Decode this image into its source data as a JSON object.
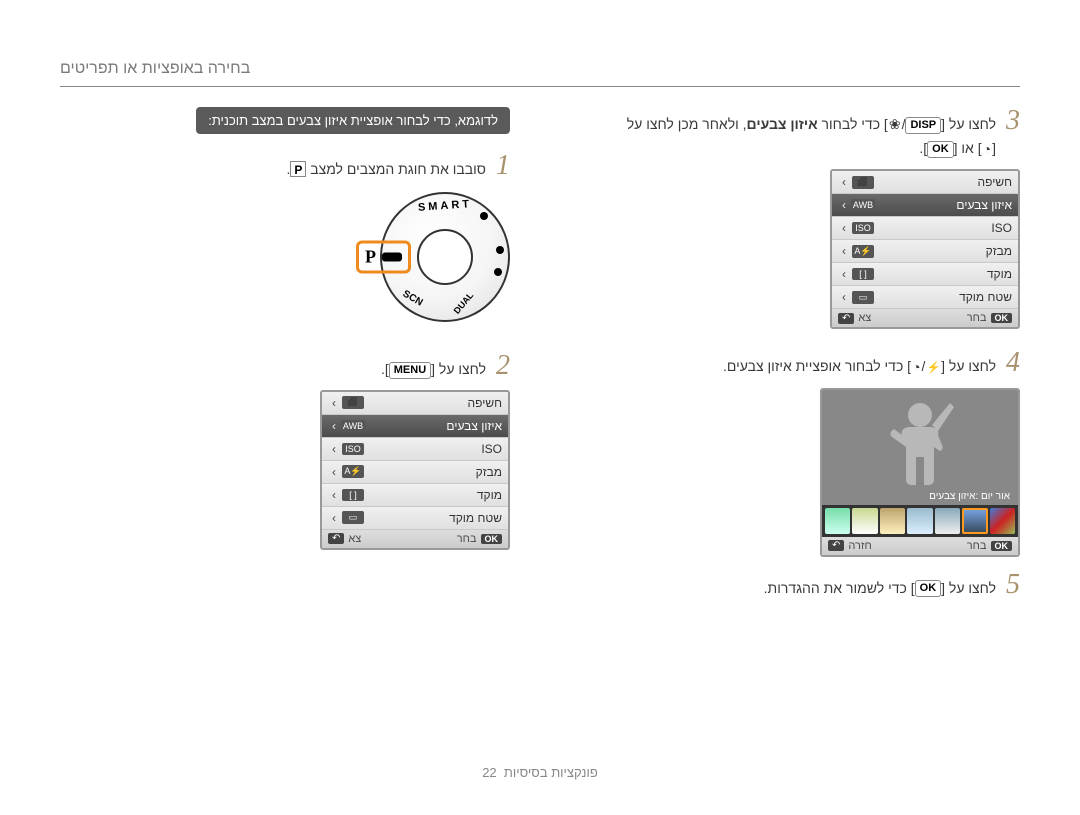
{
  "header": {
    "title": "בחירה באופציות או תפריטים"
  },
  "intro_box": "לדוגמא, כדי לבחור אופציית איזון צבעים במצב תוכנית:",
  "right": {
    "step1": {
      "num": "1",
      "text_prefix": "סובבו את חוגת המצבים למצב ",
      "mode": "P",
      "text_suffix": "."
    },
    "dial": {
      "indicator_letter": "P",
      "labels": {
        "top": "SMART",
        "bottom_left": "SCN",
        "bottom_right": "DUAL"
      }
    },
    "step2": {
      "num": "2",
      "text_prefix": "לחצו על [",
      "btn": "MENU",
      "text_suffix": "]."
    },
    "menu": {
      "items": [
        {
          "label": "חשיפה",
          "icon_text": "⬛",
          "selected": false
        },
        {
          "label": "איזון צבעים",
          "icon_text": "AWB",
          "selected": true
        },
        {
          "label": "ISO",
          "icon_text": "ISO",
          "selected": false
        },
        {
          "label": "מבזק",
          "icon_text": "⚡A",
          "selected": false
        },
        {
          "label": "מוקד",
          "icon_text": "[ ]",
          "selected": false
        },
        {
          "label": "שטח מוקד",
          "icon_text": "▭",
          "selected": false
        }
      ],
      "footer": {
        "select": "בחר",
        "exit": "צא"
      }
    }
  },
  "left": {
    "step3": {
      "num": "3",
      "line1_a": "לחצו על [",
      "btn_disp": "DISP",
      "line1_b": "/",
      "flower_html": "flower",
      "line1_c": "] כדי לבחור ",
      "bold": "איזון צבעים",
      "line1_d": ", ולאחר מכן לחצו על",
      "line2_a": "[",
      "timer_html": "timer",
      "line2_b": "] או [",
      "btn_ok": "OK",
      "line2_c": "]."
    },
    "menu": {
      "items": [
        {
          "label": "חשיפה",
          "icon_text": "⬛",
          "selected": false
        },
        {
          "label": "איזון צבעים",
          "icon_text": "AWB",
          "selected": true
        },
        {
          "label": "ISO",
          "icon_text": "ISO",
          "selected": false
        },
        {
          "label": "מבזק",
          "icon_text": "⚡A",
          "selected": false
        },
        {
          "label": "מוקד",
          "icon_text": "[ ]",
          "selected": false
        },
        {
          "label": "שטח מוקד",
          "icon_text": "▭",
          "selected": false
        }
      ],
      "footer": {
        "select": "בחר",
        "exit": "צא"
      }
    },
    "step4": {
      "num": "4",
      "text_a": "לחצו על [",
      "text_b": "/",
      "text_c": "] כדי לבחור אופציית איזון צבעים."
    },
    "wb": {
      "caption": "אור יום :איזון צבעים",
      "thumbs_count": 7,
      "thumb_gradients": [
        "linear-gradient(135deg,#3d7dd8,#c22,#9b5)",
        "linear-gradient(#7aa8e8,#345)",
        "linear-gradient(#8ab,#eee)",
        "linear-gradient(#9bc,#def)",
        "linear-gradient(#bca46b,#fff0c0)",
        "linear-gradient(#c8d890,#fff)",
        "linear-gradient(#7da,#cfe)"
      ],
      "footer": {
        "select": "בחר",
        "back": "חזרה"
      }
    },
    "step5": {
      "num": "5",
      "text_a": "לחצו על [",
      "btn": "OK",
      "text_b": "] כדי לשמור את ההגדרות."
    }
  },
  "footer": {
    "text": "פונקציות בסיסיות",
    "page": "22"
  },
  "colors": {
    "step_num": "#a8926e",
    "orange_highlight": "#ee8a1e",
    "intro_bg": "#5a5a5a"
  }
}
